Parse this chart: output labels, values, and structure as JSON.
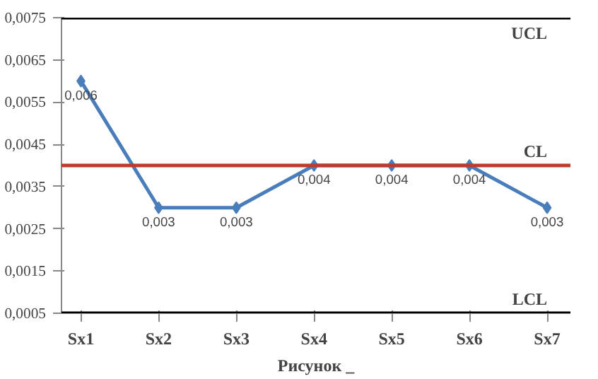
{
  "chart_data": {
    "type": "line",
    "xlabel": "Рисунок _",
    "categories": [
      "Sx1",
      "Sx2",
      "Sx3",
      "Sx4",
      "Sx5",
      "Sx6",
      "Sx7"
    ],
    "series": [
      {
        "color": "#4a7ebb",
        "values": [
          0.006,
          0.003,
          0.003,
          0.004,
          0.004,
          0.004,
          0.003
        ],
        "value_labels": [
          "0,006",
          "0,003",
          "0,003",
          "0,004",
          "0,004",
          "0,004",
          "0,003"
        ]
      }
    ],
    "ylim": [
      0.0005,
      0.0075
    ],
    "yticks": [
      {
        "value": 0.0005,
        "label": "0,0005"
      },
      {
        "value": 0.0015,
        "label": "0,0015"
      },
      {
        "value": 0.0025,
        "label": "0,0025"
      },
      {
        "value": 0.0035,
        "label": "0,0035"
      },
      {
        "value": 0.0045,
        "label": "0,0045"
      },
      {
        "value": 0.0055,
        "label": "0,0055"
      },
      {
        "value": 0.0065,
        "label": "0,0065"
      },
      {
        "value": 0.0075,
        "label": "0,0075"
      }
    ],
    "ref_lines": [
      {
        "axis": "y",
        "value": 0.0075,
        "label": "UCL",
        "color": "#000000"
      },
      {
        "axis": "y",
        "value": 0.004,
        "label": "CL",
        "color": "#c0392b"
      },
      {
        "axis": "y",
        "value": 0.0005,
        "label": "LCL",
        "color": "#000000"
      }
    ],
    "marker": "diamond",
    "grid": false,
    "line_style": "solid"
  }
}
